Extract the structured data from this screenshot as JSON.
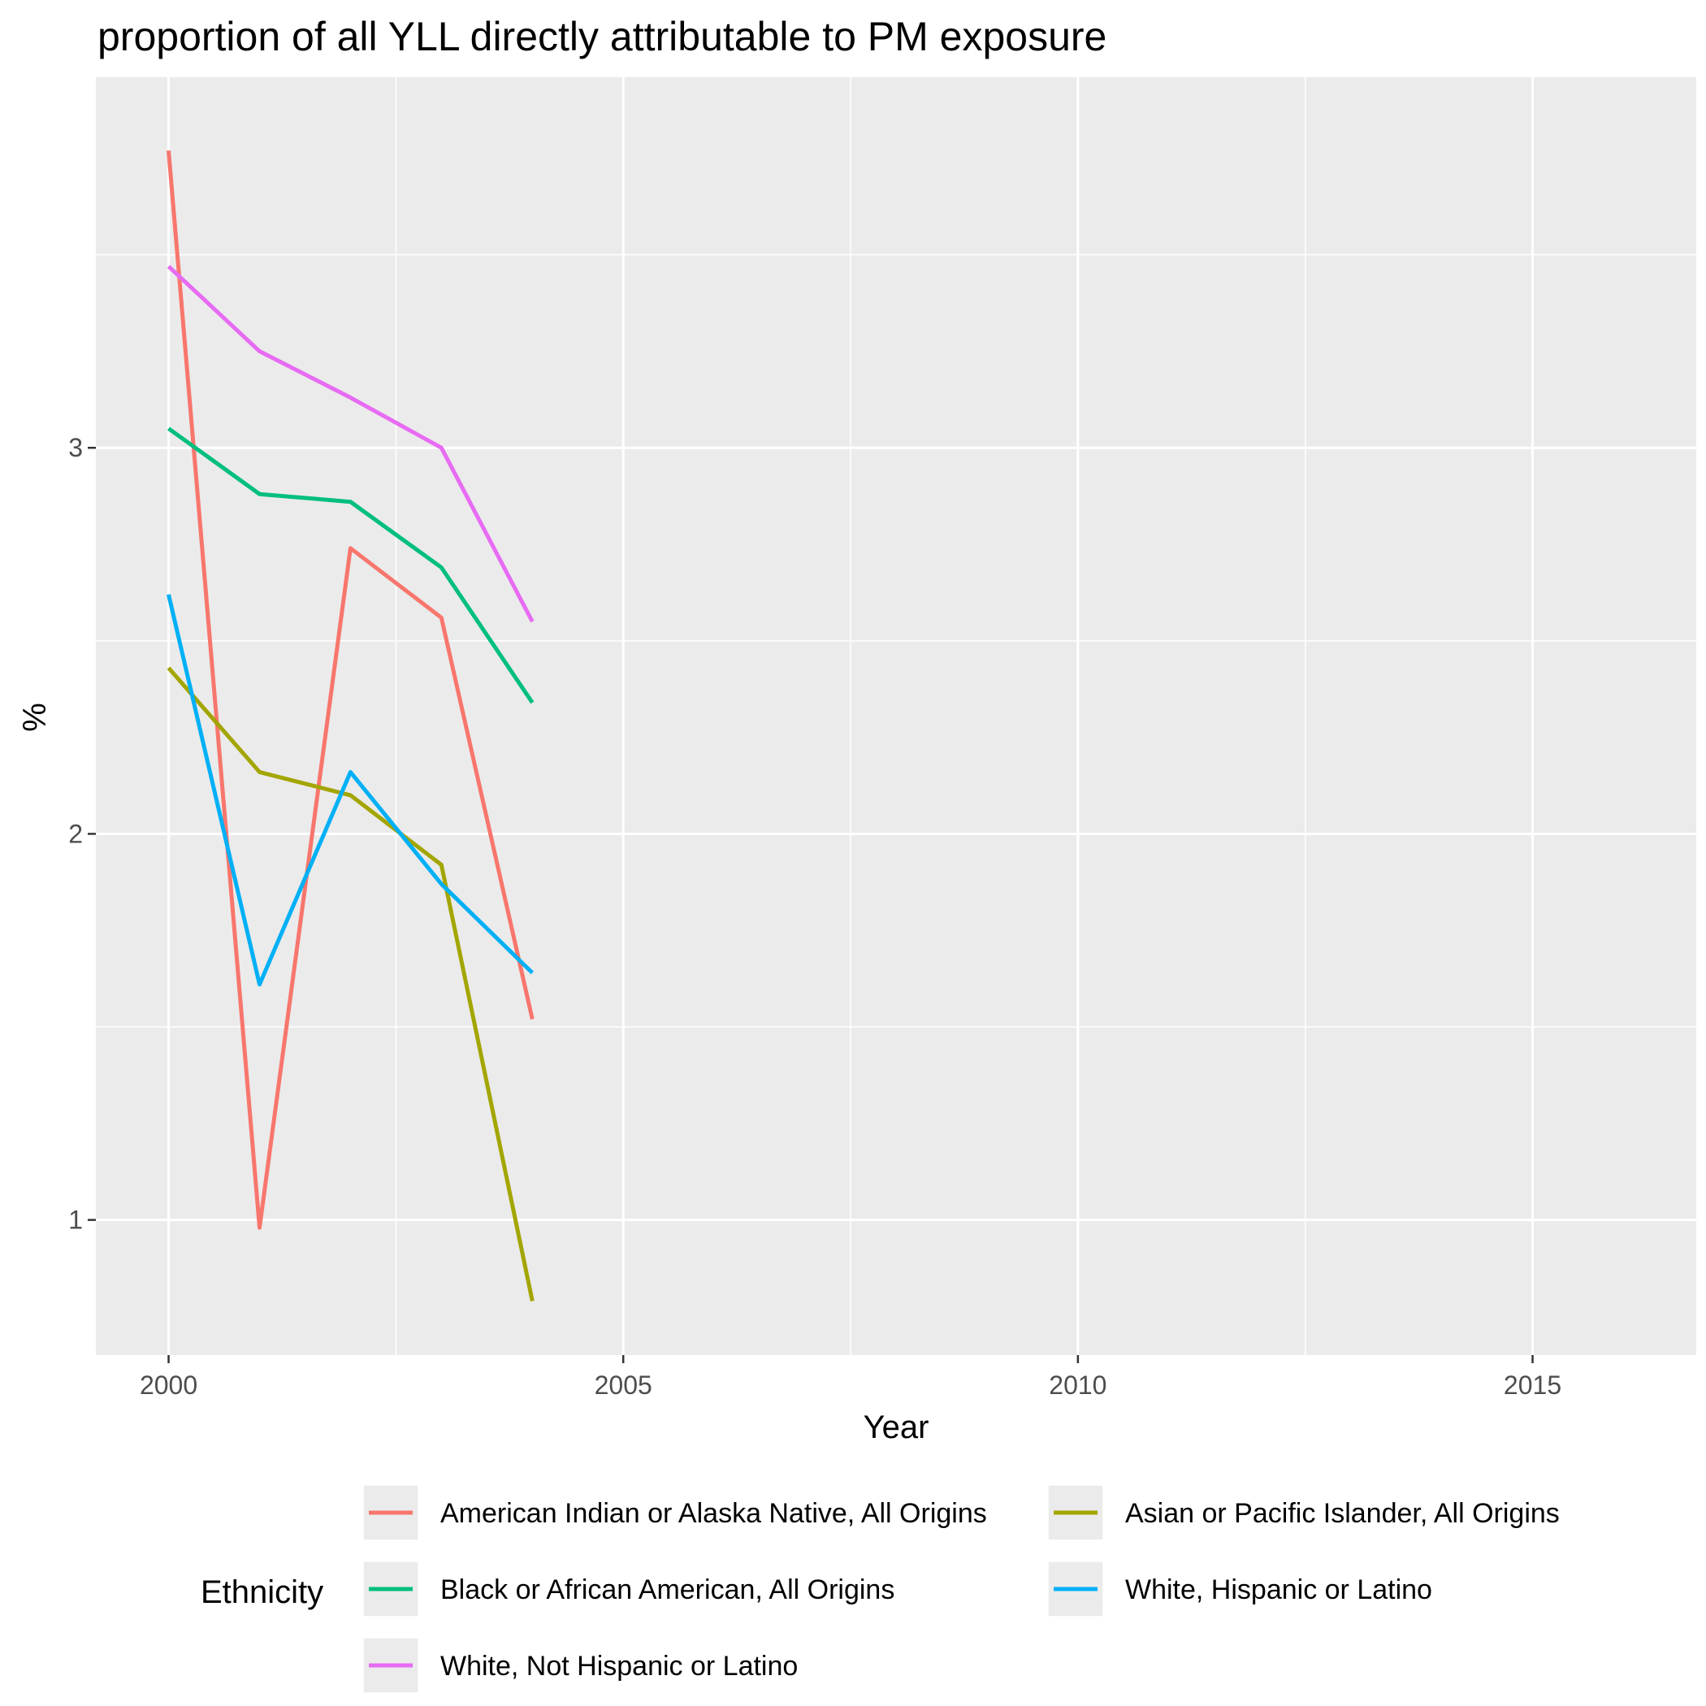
{
  "chart_data": {
    "type": "line",
    "title": "proportion of all YLL directly attributable to PM exposure",
    "xlabel": "Year",
    "ylabel": "%",
    "xlim": [
      1999.2,
      2016.8
    ],
    "ylim": [
      0.65,
      3.96
    ],
    "x_ticks": [
      2000,
      2005,
      2010,
      2015
    ],
    "x_tick_labels": [
      "2000",
      "2005",
      "2010",
      "2015"
    ],
    "y_ticks": [
      1,
      2,
      3
    ],
    "y_tick_labels": [
      "1",
      "2",
      "3"
    ],
    "grid": true,
    "legend_title": "Ethnicity",
    "legend_position": "bottom",
    "background_color": "#ebebeb",
    "grid_color": "#ffffff",
    "x": [
      2000,
      2001,
      2002,
      2003,
      2004
    ],
    "series": [
      {
        "name": "American Indian or Alaska Native, All Origins",
        "color": "#f8766d",
        "values": [
          3.77,
          0.98,
          2.74,
          2.56,
          1.52
        ]
      },
      {
        "name": "Asian or Pacific Islander, All Origins",
        "color": "#a3a500",
        "values": [
          2.43,
          2.16,
          2.1,
          1.92,
          0.79
        ]
      },
      {
        "name": "Black or African American, All Origins",
        "color": "#00bf7d",
        "values": [
          3.05,
          2.88,
          2.86,
          2.69,
          2.34
        ]
      },
      {
        "name": "White, Hispanic or Latino",
        "color": "#00b0f6",
        "values": [
          2.62,
          1.61,
          2.16,
          1.87,
          1.64
        ]
      },
      {
        "name": "White, Not Hispanic or Latino",
        "color": "#e76bf3",
        "values": [
          3.47,
          3.25,
          3.13,
          3.0,
          2.55
        ]
      }
    ]
  }
}
